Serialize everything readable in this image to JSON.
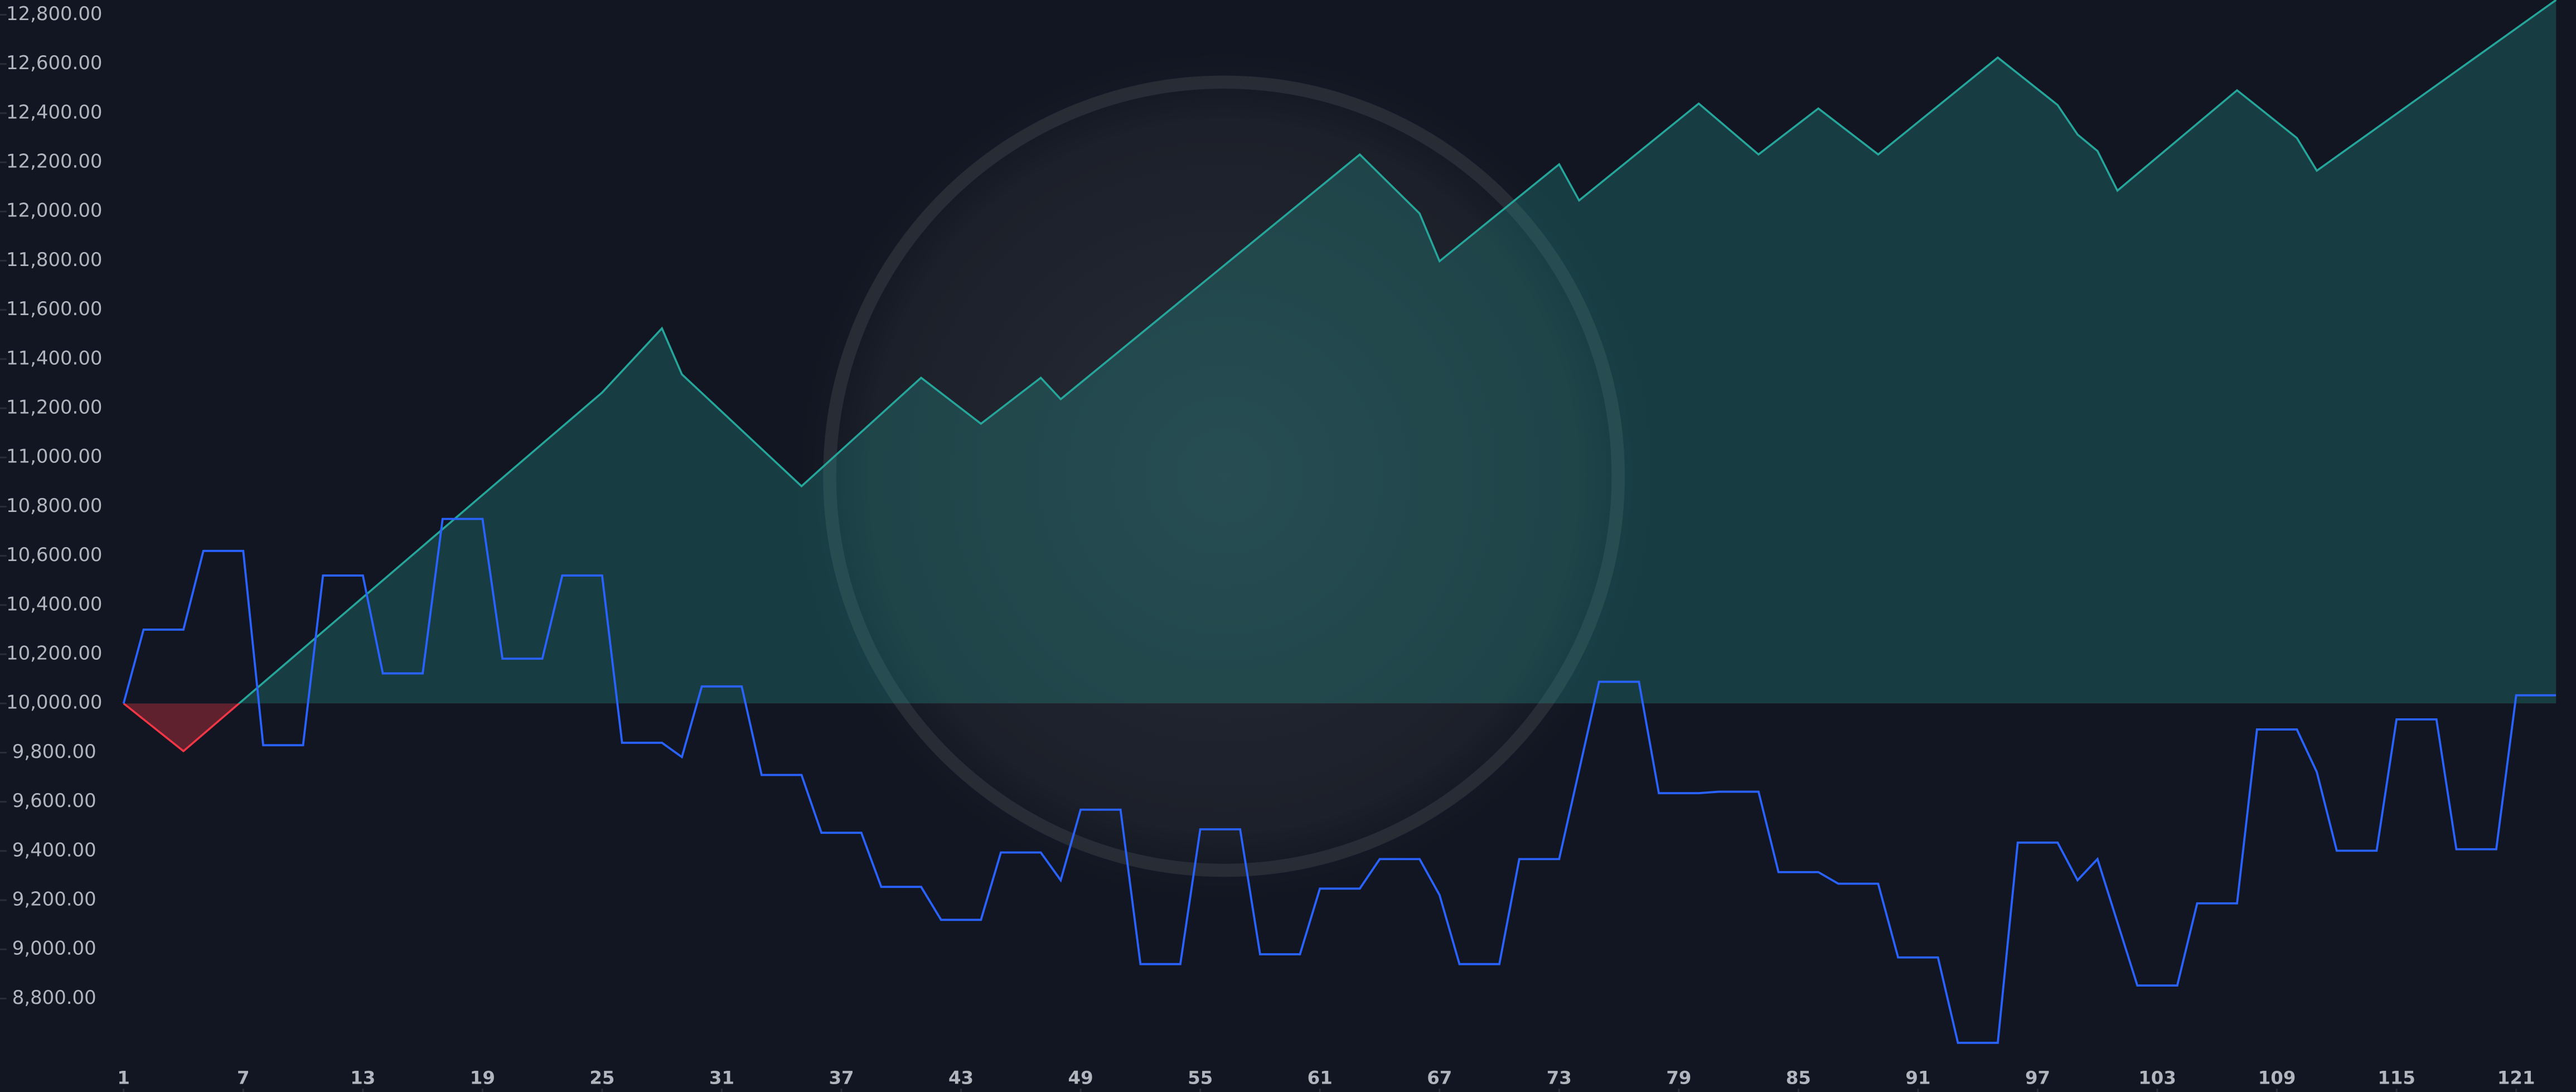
{
  "chart_data": {
    "type": "line",
    "xlim": [
      -5.2,
      124
    ],
    "ylim": [
      8420,
      12860
    ],
    "baseline": 10000,
    "area_colors": {
      "above": "#26a69a",
      "below": "#f23645"
    },
    "xticks": [
      1,
      7,
      13,
      19,
      25,
      31,
      37,
      43,
      49,
      55,
      61,
      67,
      73,
      79,
      85,
      91,
      97,
      103,
      109,
      115,
      121
    ],
    "yticks": [
      {
        "value": 8800,
        "label": "8,800.00"
      },
      {
        "value": 9000,
        "label": "9,000.00"
      },
      {
        "value": 9200,
        "label": "9,200.00"
      },
      {
        "value": 9400,
        "label": "9,400.00"
      },
      {
        "value": 9600,
        "label": "9,600.00"
      },
      {
        "value": 9800,
        "label": "9,800.00"
      },
      {
        "value": 10000,
        "label": "10,000.00"
      },
      {
        "value": 10200,
        "label": "10,200.00"
      },
      {
        "value": 10400,
        "label": "10,400.00"
      },
      {
        "value": 10600,
        "label": "10,600.00"
      },
      {
        "value": 10800,
        "label": "10,800.00"
      },
      {
        "value": 11000,
        "label": "11,000.00"
      },
      {
        "value": 11200,
        "label": "11,200.00"
      },
      {
        "value": 11400,
        "label": "11,400.00"
      },
      {
        "value": 11600,
        "label": "11,600.00"
      },
      {
        "value": 11800,
        "label": "11,800.00"
      },
      {
        "value": 12000,
        "label": "12,000.00"
      },
      {
        "value": 12200,
        "label": "12,200.00"
      },
      {
        "value": 12400,
        "label": "12,400.00"
      },
      {
        "value": 12600,
        "label": "12,600.00"
      },
      {
        "value": 12800,
        "label": "12,800.00"
      }
    ],
    "series": [
      {
        "color": "#26a69a",
        "area": true,
        "x": [
          1,
          4,
          25,
          28,
          29,
          35,
          41,
          44,
          47,
          48,
          63,
          66,
          67,
          73,
          74,
          80,
          83,
          86,
          89,
          95,
          98,
          99,
          100,
          101,
          107,
          110,
          111,
          123
        ],
        "values": [
          10000,
          9806,
          11264,
          11525,
          11338,
          10883,
          11324,
          11137,
          11324,
          11237,
          12232,
          11992,
          11798,
          12192,
          12045,
          12439,
          12232,
          12419,
          12232,
          12626,
          12433,
          12313,
          12246,
          12085,
          12493,
          12299,
          12166,
          12860
        ]
      },
      {
        "color": "#2962ff",
        "area": false,
        "x": [
          1,
          2,
          4,
          5,
          7,
          8,
          10,
          11,
          13,
          14,
          16,
          17,
          19,
          20,
          22,
          23,
          25,
          26,
          28,
          29,
          30,
          32,
          33,
          35,
          36,
          38,
          39,
          41,
          42,
          44,
          45,
          47,
          48,
          49,
          51,
          52,
          54,
          55,
          57,
          58,
          60,
          61,
          63,
          64,
          66,
          67,
          68,
          70,
          71,
          73,
          75,
          77,
          78,
          80,
          81,
          83,
          84,
          86,
          87,
          89,
          90,
          92,
          93,
          95,
          96,
          98,
          99,
          100,
          102,
          104,
          105,
          107,
          108,
          110,
          111,
          112,
          114,
          115,
          117,
          118,
          120,
          121,
          123
        ],
        "values": [
          10000,
          10300,
          10300,
          10620,
          10620,
          9830,
          9830,
          10520,
          10520,
          10122,
          10122,
          10750,
          10750,
          10182,
          10182,
          10520,
          10520,
          9840,
          9840,
          9782,
          10069,
          10069,
          9709,
          9709,
          9474,
          9474,
          9254,
          9254,
          9120,
          9120,
          9394,
          9394,
          9281,
          9568,
          9568,
          8940,
          8940,
          9488,
          9488,
          8980,
          8980,
          9247,
          9247,
          9367,
          9367,
          9221,
          8940,
          8940,
          9367,
          9367,
          10088,
          10088,
          9635,
          9635,
          9641,
          9641,
          9314,
          9314,
          9267,
          9267,
          8967,
          8967,
          8620,
          8620,
          9434,
          9434,
          9281,
          9367,
          8853,
          8853,
          9187,
          9187,
          9894,
          9894,
          9721,
          9401,
          9401,
          9935,
          9935,
          9407,
          9407,
          10033,
          10033
        ]
      }
    ]
  }
}
